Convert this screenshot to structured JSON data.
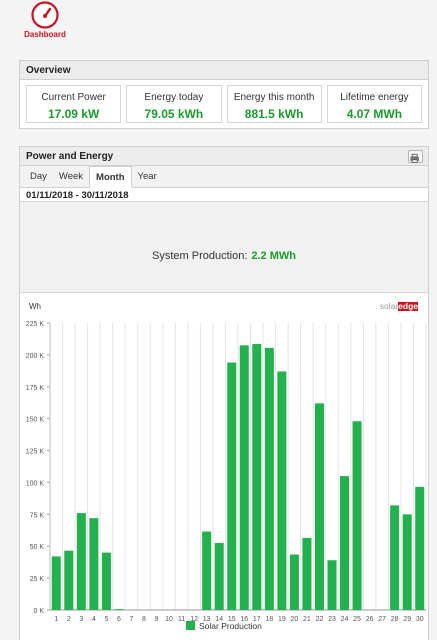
{
  "dashboard": {
    "label": "Dashboard"
  },
  "overview": {
    "title": "Overview",
    "tiles": [
      {
        "label": "Current Power",
        "value": "17.09 kW"
      },
      {
        "label": "Energy today",
        "value": "79.05 kWh"
      },
      {
        "label": "Energy this month",
        "value": "881.5 kWh"
      },
      {
        "label": "Lifetime energy",
        "value": "4.07 MWh"
      }
    ]
  },
  "power_energy": {
    "title": "Power and Energy",
    "tabs": [
      "Day",
      "Week",
      "Month",
      "Year"
    ],
    "active_tab": "Month",
    "date_range": "01/11/2018 - 30/11/2018",
    "production_label": "System Production:",
    "production_value": "2.2 MWh",
    "brand": {
      "part1": "solar",
      "part2": "edge"
    }
  },
  "colors": {
    "accent_green": "#1a9b2c",
    "bar_green": "#22b14c",
    "brand_red": "#c8141e"
  },
  "chart_data": {
    "type": "bar",
    "ylabel": "Wh",
    "ylim": [
      0,
      225000
    ],
    "yticks": [
      "0 K",
      "25 K",
      "50 K",
      "75 K",
      "100 K",
      "125 K",
      "150 K",
      "175 K",
      "200 K",
      "225 K"
    ],
    "categories": [
      "1",
      "2",
      "3",
      "4",
      "5",
      "6",
      "7",
      "8",
      "9",
      "10",
      "11",
      "12",
      "13",
      "14",
      "15",
      "16",
      "17",
      "18",
      "19",
      "20",
      "21",
      "22",
      "23",
      "24",
      "25",
      "26",
      "27",
      "28",
      "29",
      "30"
    ],
    "series": [
      {
        "name": "Solar Production",
        "values": [
          42000,
          46500,
          76000,
          72000,
          45000,
          700,
          0,
          0,
          0,
          0,
          0,
          0,
          61500,
          52500,
          194000,
          207500,
          208500,
          205500,
          187000,
          43500,
          56500,
          162000,
          39000,
          105000,
          148000,
          0,
          0,
          82000,
          75000,
          96500
        ]
      }
    ],
    "legend": "bottom-center",
    "grid": true
  }
}
